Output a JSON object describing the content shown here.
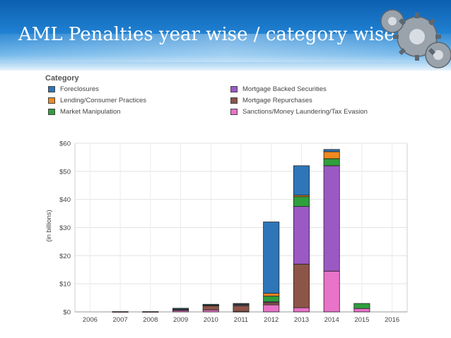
{
  "slide": {
    "title": "AML Penalties year wise / category wise"
  },
  "chart_data": {
    "type": "bar",
    "stacked": true,
    "title": "AML Penalties year wise / category wise",
    "legend_title": "Category",
    "ylabel": "(in billions)",
    "xlabel": "",
    "ylim": [
      0,
      60
    ],
    "yticks": [
      {
        "value": 0,
        "label": "$0"
      },
      {
        "value": 10,
        "label": "$10"
      },
      {
        "value": 20,
        "label": "$20"
      },
      {
        "value": 30,
        "label": "$30"
      },
      {
        "value": 40,
        "label": "$40"
      },
      {
        "value": 50,
        "label": "$50"
      },
      {
        "value": 60,
        "label": "$60"
      }
    ],
    "grid": true,
    "categories": [
      "2006",
      "2007",
      "2008",
      "2009",
      "2010",
      "2011",
      "2012",
      "2013",
      "2014",
      "2015",
      "2016"
    ],
    "series": [
      {
        "name": "Sanctions/Money Laundering/Tax Evasion",
        "color": "#e873c8",
        "values": [
          0,
          0.1,
          0.1,
          0.5,
          0.7,
          0.2,
          2.5,
          1.5,
          14.5,
          1.2,
          0
        ]
      },
      {
        "name": "Mortgage Repurchases",
        "color": "#8c5548",
        "values": [
          0,
          0,
          0,
          0.3,
          1.5,
          2.0,
          0.8,
          15.5,
          0,
          0,
          0
        ]
      },
      {
        "name": "Mortgage Backed Securities",
        "color": "#9b59c4",
        "values": [
          0,
          0,
          0,
          0,
          0.2,
          0.3,
          0.3,
          20.5,
          37.5,
          0,
          0
        ]
      },
      {
        "name": "Market Manipulation",
        "color": "#2f9e3d",
        "values": [
          0,
          0,
          0,
          0.2,
          0.1,
          0.4,
          2.0,
          3.5,
          2.5,
          1.8,
          0
        ]
      },
      {
        "name": "Lending/Consumer Practices",
        "color": "#f08a20",
        "values": [
          0,
          0,
          0,
          0,
          0,
          0,
          1.0,
          0.5,
          2.5,
          0,
          0
        ]
      },
      {
        "name": "Foreclosures",
        "color": "#2e76b8",
        "values": [
          0,
          0,
          0,
          0.3,
          0.2,
          0.1,
          25.4,
          10.5,
          0.8,
          0,
          0
        ]
      }
    ],
    "legend": [
      {
        "label": "Foreclosures",
        "color": "#2e76b8"
      },
      {
        "label": "Mortgage Backed Securities",
        "color": "#9b59c4"
      },
      {
        "label": "Lending/Consumer Practices",
        "color": "#f08a20"
      },
      {
        "label": "Mortgage Repurchases",
        "color": "#8c5548"
      },
      {
        "label": "Market Manipulation",
        "color": "#2f9e3d"
      },
      {
        "label": "Sanctions/Money Laundering/Tax Evasion",
        "color": "#e873c8"
      }
    ],
    "legend_position": "top"
  }
}
